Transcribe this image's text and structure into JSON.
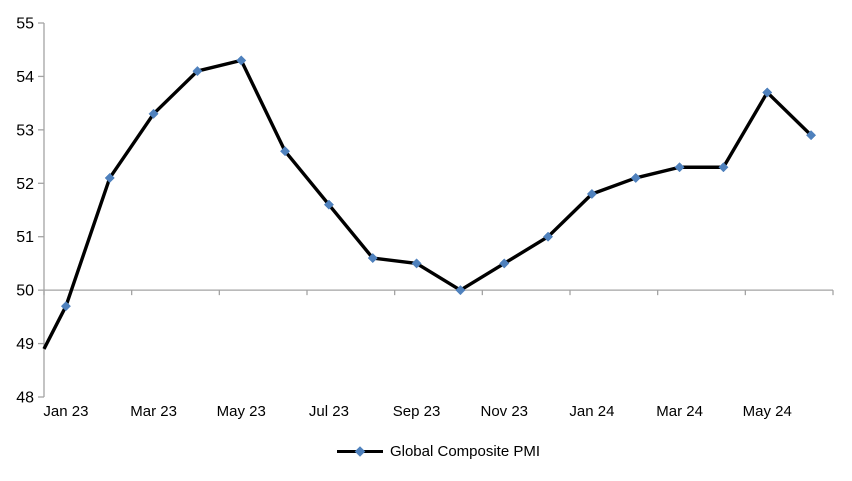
{
  "chart_data": {
    "type": "line",
    "title": "",
    "legend_label": "Global Composite PMI",
    "legend_position": "bottom-center",
    "categories": [
      "Jan 23",
      "Feb 23",
      "Mar 23",
      "Apr 23",
      "May 23",
      "Jun 23",
      "Jul 23",
      "Aug 23",
      "Sep 23",
      "Oct 23",
      "Nov 23",
      "Dec 23",
      "Jan 24",
      "Feb 24",
      "Mar 24",
      "Apr 24",
      "May 24",
      "Jun 24"
    ],
    "series": [
      {
        "name": "Global Composite PMI",
        "values": [
          49.7,
          52.1,
          53.3,
          54.1,
          54.3,
          52.6,
          51.6,
          50.6,
          50.5,
          50.0,
          50.5,
          51.0,
          51.8,
          52.1,
          52.3,
          52.3,
          53.7,
          52.9
        ]
      }
    ],
    "left_edge_entry_value": 48.9,
    "x_tick_labels": [
      "Jan 23",
      "Mar 23",
      "May 23",
      "Jul 23",
      "Sep 23",
      "Nov 23",
      "Jan 24",
      "Mar 24",
      "May 24"
    ],
    "x_label_every_n_categories": 2,
    "y_ticks": [
      55,
      54,
      53,
      52,
      51,
      50,
      49,
      48
    ],
    "ylim": [
      48,
      55
    ],
    "category_axis_crosses_at": 50,
    "grid": "off",
    "colors": {
      "line": "#000000",
      "marker": "#4f81bd",
      "axis": "#a3a3a3",
      "text": "#000000"
    }
  }
}
